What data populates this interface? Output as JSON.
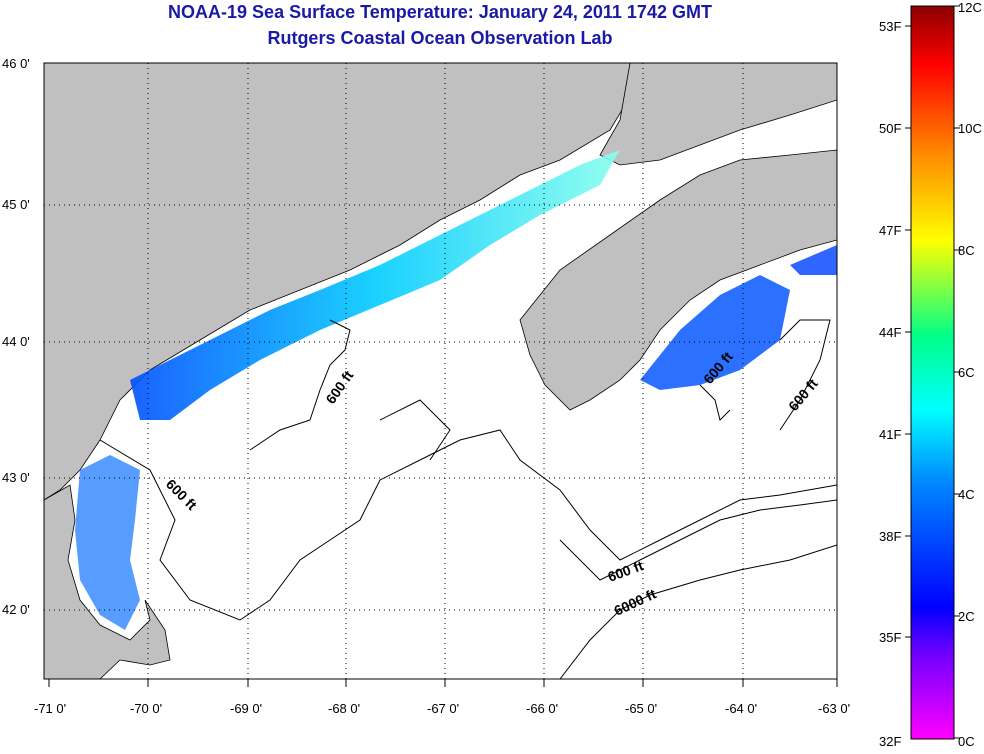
{
  "title": "NOAA-19 Sea Surface Temperature:  January 24, 2011 1742 GMT",
  "subtitle": "Rutgers Coastal Ocean Observation Lab",
  "map": {
    "lat_labels": [
      "46 0'",
      "45 0'",
      "44 0'",
      "43 0'",
      "42 0'"
    ],
    "lon_labels": [
      "-71 0'",
      "-70 0'",
      "-69 0'",
      "-68 0'",
      "-67 0'",
      "-66 0'",
      "-65 0'",
      "-64 0'",
      "-63 0'"
    ],
    "contour_labels": [
      "600 ft",
      "600 ft",
      "600 ft",
      "600 ft",
      "600 ft",
      "6000 ft"
    ],
    "colors": {
      "land": "#c0c0c0",
      "water": "#ffffff",
      "coast": "#000000"
    }
  },
  "colorbar": {
    "fahrenheit": [
      "53F",
      "50F",
      "47F",
      "44F",
      "41F",
      "38F",
      "35F",
      "32F"
    ],
    "celsius": [
      "12C",
      "10C",
      "8C",
      "6C",
      "4C",
      "2C",
      "0C"
    ],
    "stops": [
      "#ff00ff",
      "#6a00ff",
      "#0000ff",
      "#0088ff",
      "#00ffff",
      "#00ff88",
      "#ffff00",
      "#ff8800",
      "#ff0000",
      "#8b0000"
    ]
  }
}
